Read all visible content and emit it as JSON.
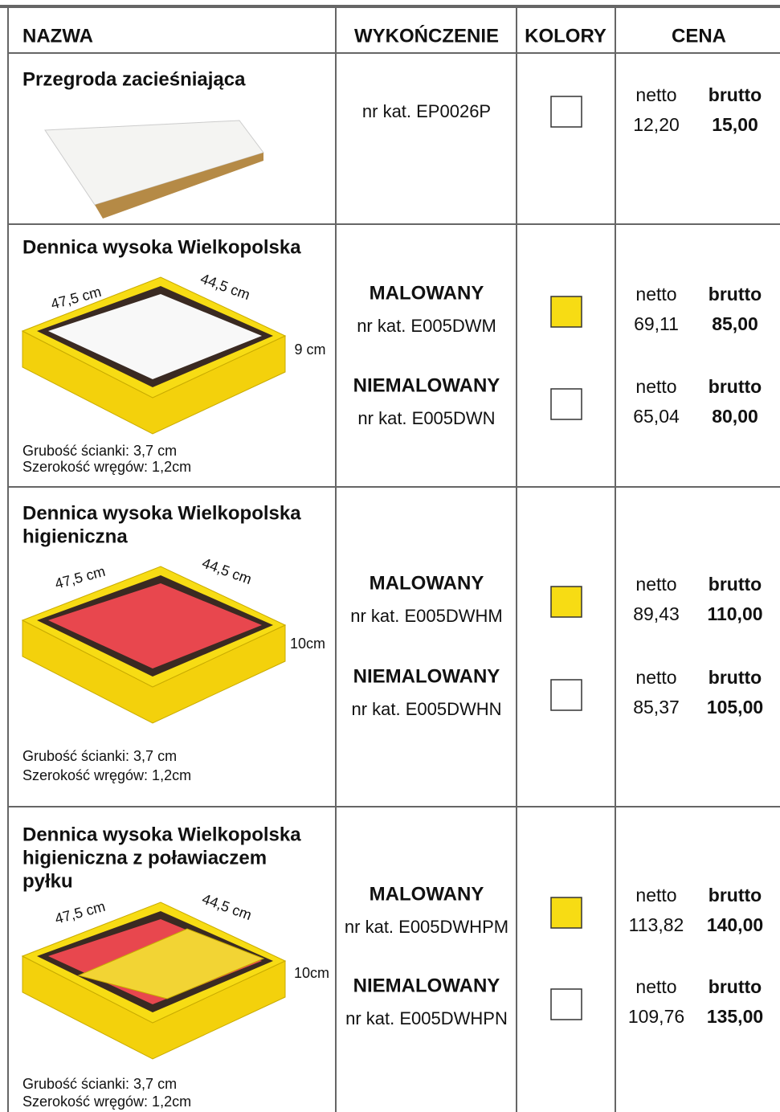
{
  "header": {
    "columns": [
      "NAZWA",
      "WYKOŃCZENIE",
      "KOLORY",
      "CENA"
    ]
  },
  "rows": [
    {
      "name": [
        "Przegroda zacieśniająca"
      ],
      "dims": [],
      "notes": [],
      "variants": [
        {
          "catalog": "nr kat. EP0026P",
          "color": "#ffffff",
          "netto_label": "netto",
          "netto": "12,20",
          "brutto_label": "brutto",
          "brutto": "15,00"
        }
      ]
    },
    {
      "name": [
        "Dennica wysoka Wielkopolska"
      ],
      "dims": [
        "47,5 cm",
        "44,5 cm",
        "9 cm"
      ],
      "notes": [
        "Grubość ścianki: 3,7 cm",
        "Szerokość wręgów: 1,2cm"
      ],
      "variants": [
        {
          "finish": "MALOWANY",
          "catalog": "nr kat. E005DWM",
          "color": "#f7dc14",
          "netto_label": "netto",
          "netto": "69,11",
          "brutto_label": "brutto",
          "brutto": "85,00"
        },
        {
          "finish": "NIEMALOWANY",
          "catalog": "nr kat. E005DWN",
          "color": "#ffffff",
          "netto_label": "netto",
          "netto": "65,04",
          "brutto_label": "brutto",
          "brutto": "80,00"
        }
      ]
    },
    {
      "name": [
        "Dennica wysoka Wielkopolska",
        "higieniczna"
      ],
      "dims": [
        "47,5 cm",
        "44,5 cm",
        "10cm"
      ],
      "notes": [
        "Grubość ścianki: 3,7 cm",
        "Szerokość wręgów: 1,2cm"
      ],
      "variants": [
        {
          "finish": "MALOWANY",
          "catalog": "nr kat. E005DWHM",
          "color": "#f7dc14",
          "netto_label": "netto",
          "netto": "89,43",
          "brutto_label": "brutto",
          "brutto": "110,00"
        },
        {
          "finish": "NIEMALOWANY",
          "catalog": "nr kat. E005DWHN",
          "color": "#ffffff",
          "netto_label": "netto",
          "netto": "85,37",
          "brutto_label": "brutto",
          "brutto": "105,00"
        }
      ]
    },
    {
      "name": [
        "Dennica wysoka Wielkopolska",
        "higieniczna z poławiaczem",
        "pyłku"
      ],
      "dims": [
        "47,5 cm",
        "44,5 cm",
        "10cm"
      ],
      "notes": [
        "Grubość ścianki: 3,7 cm",
        "Szerokość wręgów: 1,2cm"
      ],
      "variants": [
        {
          "finish": "MALOWANY",
          "catalog": "nr kat. E005DWHPM",
          "color": "#f7dc14",
          "netto_label": "netto",
          "netto": "113,82",
          "brutto_label": "brutto",
          "brutto": "140,00"
        },
        {
          "finish": "NIEMALOWANY",
          "catalog": "nr kat. E005DWHPN",
          "color": "#ffffff",
          "netto_label": "netto",
          "netto": "109,76",
          "brutto_label": "brutto",
          "brutto": "135,00"
        }
      ]
    }
  ]
}
